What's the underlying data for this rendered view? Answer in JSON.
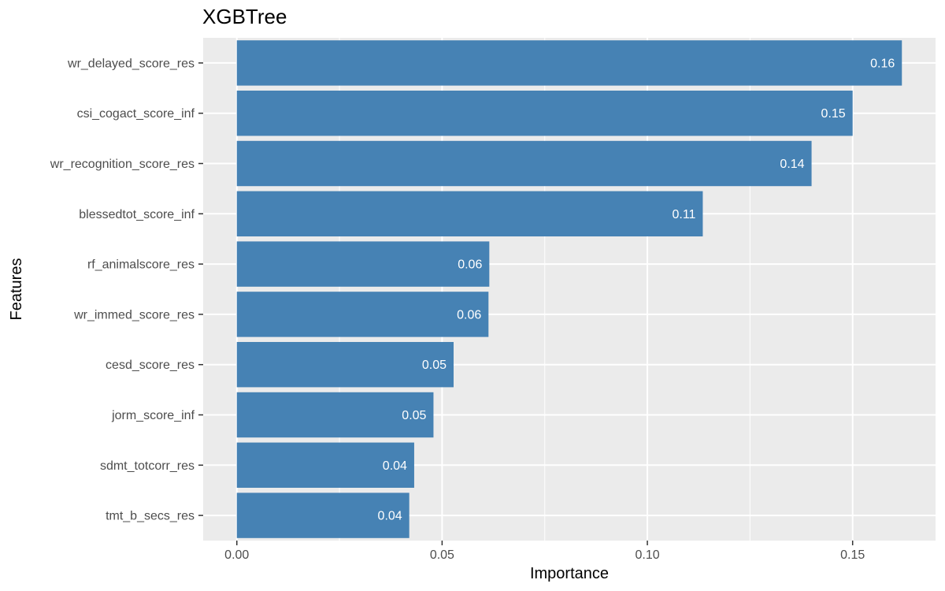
{
  "chart_data": {
    "type": "bar",
    "orientation": "horizontal",
    "title": "XGBTree",
    "xlabel": "Importance",
    "ylabel": "Features",
    "categories": [
      "wr_delayed_score_res",
      "csi_cogact_score_inf",
      "wr_recognition_score_res",
      "blessedtot_score_inf",
      "rf_animalscore_res",
      "wr_immed_score_res",
      "cesd_score_res",
      "jorm_score_inf",
      "sdmt_totcorr_res",
      "tmt_b_secs_res"
    ],
    "values": [
      0.162,
      0.15,
      0.14,
      0.1135,
      0.0615,
      0.0613,
      0.0528,
      0.0479,
      0.0432,
      0.042
    ],
    "data_labels": [
      "0.16",
      "0.15",
      "0.14",
      "0.11",
      "0.06",
      "0.06",
      "0.05",
      "0.05",
      "0.04",
      "0.04"
    ],
    "xticks": [
      0,
      0.05,
      0.1,
      0.15
    ],
    "xtick_labels": [
      "0.00",
      "0.05",
      "0.10",
      "0.15"
    ],
    "xlim": [
      -0.0082,
      0.1702
    ],
    "grid": true,
    "colors": {
      "bar": "#4682b4",
      "panel": "#ebebeb",
      "grid": "#ffffff",
      "label": "#ffffff"
    }
  }
}
